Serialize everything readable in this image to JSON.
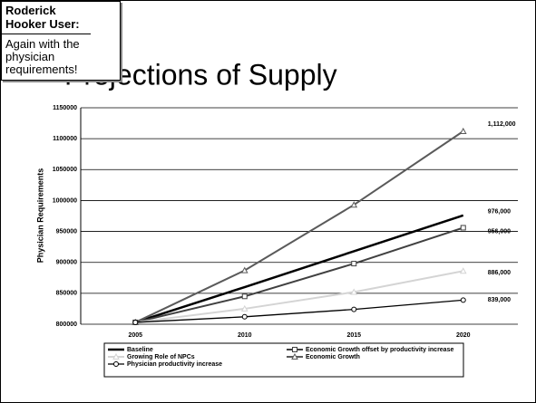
{
  "slide": {
    "title": "Projections of Supply"
  },
  "comment": {
    "author": "Roderick Hooker User:",
    "text": "Again with the physician requirements!"
  },
  "chart_data": {
    "type": "line",
    "y_label": "Physician Requirements",
    "categories": [
      "2005",
      "2010",
      "2015",
      "2020"
    ],
    "ylim": [
      800000,
      1150000
    ],
    "yticks": [
      800000,
      850000,
      900000,
      950000,
      1000000,
      1050000,
      1100000,
      1150000
    ],
    "grid": true,
    "series": [
      {
        "name": "Baseline",
        "color": "#000000",
        "marker": "none",
        "values": [
          803000,
          860000,
          918000,
          976000
        ],
        "value_labels": [
          null,
          null,
          null,
          "976,000"
        ]
      },
      {
        "name": "Economic Growth offset by productivity increase",
        "color": "#404040",
        "marker": "square",
        "values": [
          803000,
          845000,
          898000,
          956000
        ],
        "value_labels": [
          null,
          null,
          null,
          "956,000"
        ]
      },
      {
        "name": "Growing Role of NPCs",
        "color": "#d4d4d4",
        "marker": "triangle",
        "values": [
          803000,
          825000,
          852000,
          886000
        ],
        "value_labels": [
          null,
          null,
          null,
          "886,000"
        ]
      },
      {
        "name": "Economic Growth",
        "color": "#5a5a5a",
        "marker": "triangle",
        "values": [
          803000,
          887000,
          993000,
          1112000
        ],
        "value_labels": [
          null,
          null,
          null,
          "1,112,000"
        ]
      },
      {
        "name": "Physician productivity increase",
        "color": "#000000",
        "marker": "circle",
        "values": [
          803000,
          812000,
          824000,
          839000
        ],
        "value_labels": [
          null,
          null,
          null,
          "839,000"
        ]
      }
    ]
  }
}
